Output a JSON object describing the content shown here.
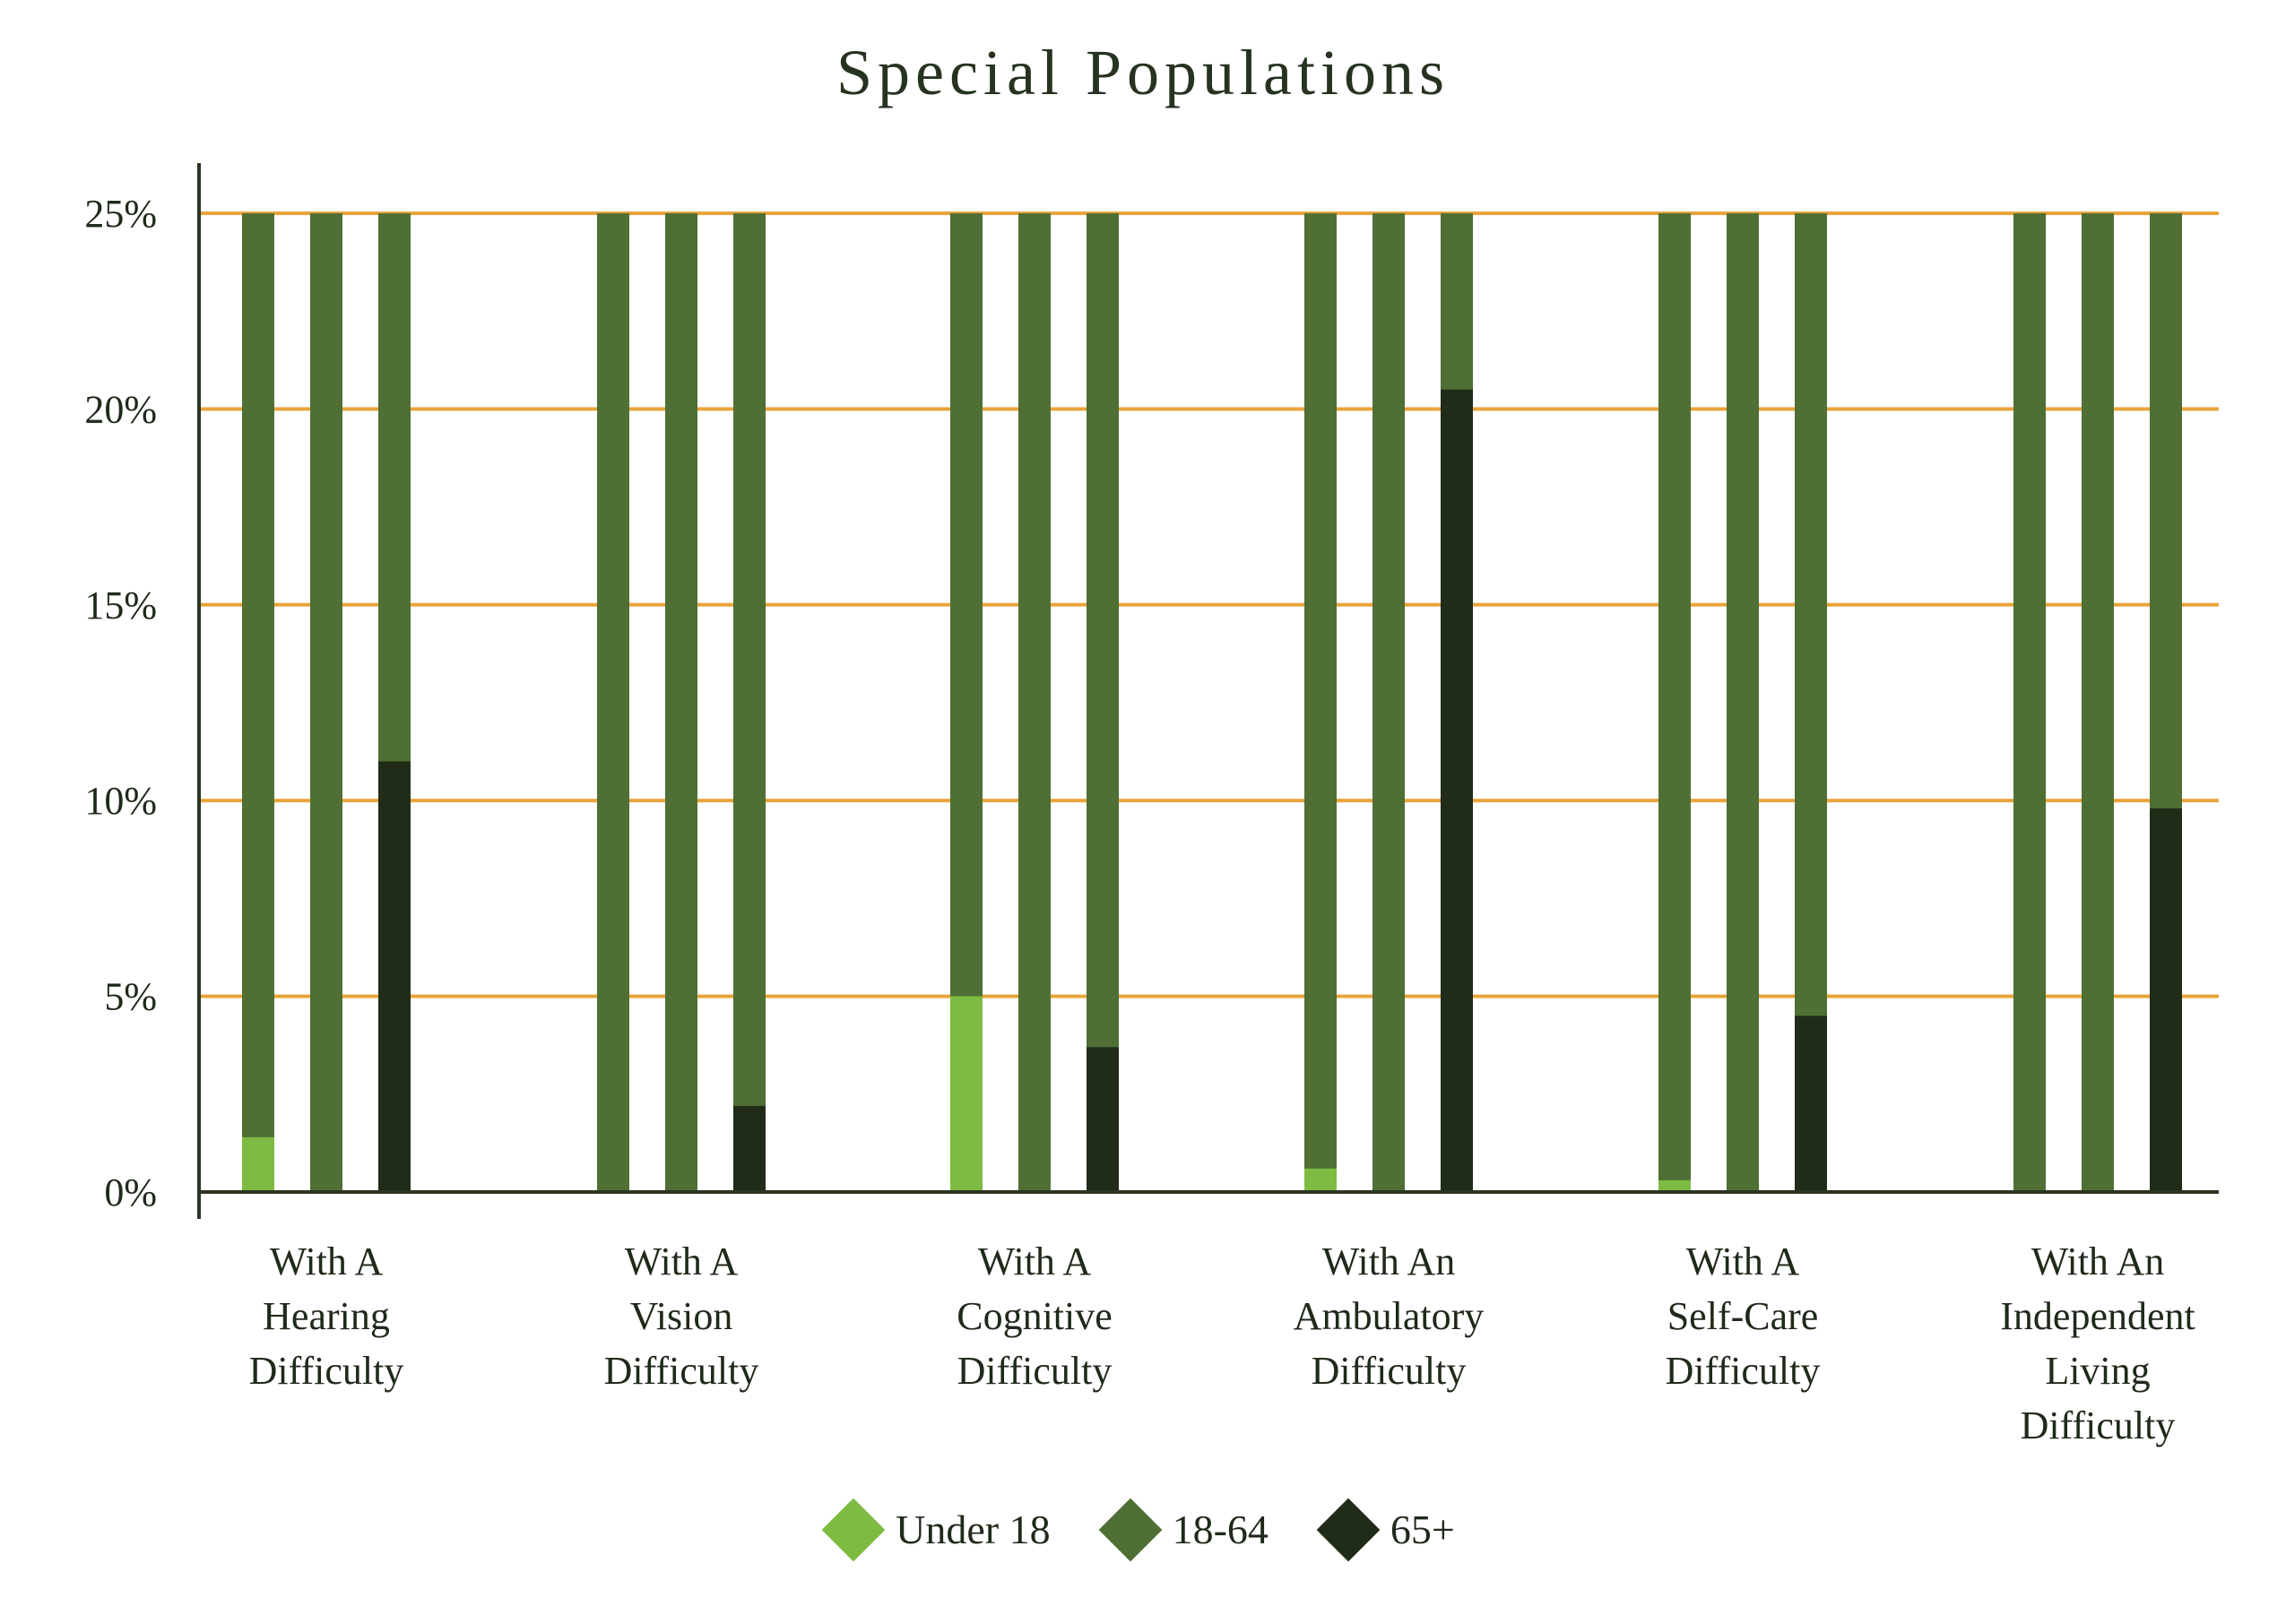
{
  "chart_data": {
    "type": "bar",
    "title": "Special Populations",
    "xlabel": "",
    "ylabel": "",
    "ylim": [
      0,
      25
    ],
    "y_ticks": [
      "0%",
      "5%",
      "10%",
      "15%",
      "20%",
      "25%"
    ],
    "y_tick_values": [
      0,
      5,
      10,
      15,
      20,
      25
    ],
    "grid": true,
    "legend_position": "bottom",
    "categories": [
      [
        "With A",
        "Hearing",
        "Difficulty"
      ],
      [
        "With A",
        "Vision",
        "Difficulty"
      ],
      [
        "With A",
        "Cognitive",
        "Difficulty"
      ],
      [
        "With An",
        "Ambulatory",
        "Difficulty"
      ],
      [
        "With A",
        "Self-Care",
        "Difficulty"
      ],
      [
        "With An",
        "Independent",
        "Living",
        "Difficulty"
      ]
    ],
    "series": [
      {
        "name": "Under 18",
        "color": "#7dbb42",
        "values": [
          1.4,
          0,
          5.0,
          0.6,
          0.3,
          0
        ]
      },
      {
        "name": "18-64",
        "color": "#4f6f34",
        "values": [
          0,
          0,
          0,
          0,
          0,
          0
        ]
      },
      {
        "name": "65+",
        "color": "#212c18",
        "values": [
          11.0,
          2.2,
          3.7,
          20.5,
          4.5,
          9.8
        ]
      }
    ],
    "background_bar_color": "#4f6f34",
    "gridline_color": "#e9a43a",
    "axis_color": "#2a3522"
  }
}
